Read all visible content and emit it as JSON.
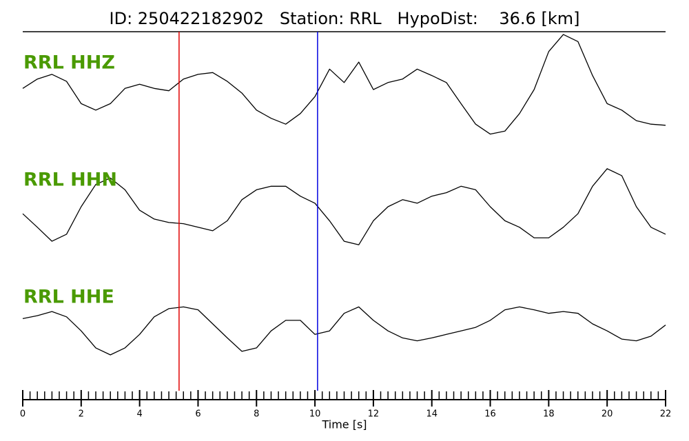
{
  "chart_data": {
    "type": "line",
    "title": "ID: 250422182902   Station: RRL   HypoDist:    36.6 [km]",
    "xlabel": "Time [s]",
    "xlim": [
      0,
      22
    ],
    "xticks": [
      0,
      2,
      4,
      6,
      8,
      10,
      12,
      14,
      16,
      18,
      20,
      22
    ],
    "minor_xticks": [
      0,
      0.25,
      0.5,
      0.75,
      1,
      1.25,
      1.5,
      1.75,
      2,
      2.25,
      2.5,
      2.75,
      3,
      3.25,
      3.5,
      3.75,
      4,
      4.25,
      4.5,
      4.75,
      5,
      5.25,
      5.5,
      5.75,
      6,
      6.25,
      6.5,
      6.75,
      7,
      7.25,
      7.5,
      7.75,
      8,
      8.25,
      8.5,
      8.75,
      9,
      9.25,
      9.5,
      9.75,
      10,
      10.25,
      10.5,
      10.75,
      11,
      11.25,
      11.5,
      11.75,
      12,
      12.25,
      12.5,
      12.75,
      13,
      13.25,
      13.5,
      13.75,
      14,
      14.25,
      14.5,
      14.75,
      15,
      15.25,
      15.5,
      15.75,
      16,
      16.25,
      16.5,
      16.75,
      17,
      17.25,
      17.5,
      17.75,
      18,
      18.25,
      18.5,
      18.75,
      19,
      19.25,
      19.5,
      19.75,
      20,
      20.25,
      20.5,
      20.75,
      21,
      21.25,
      21.5,
      21.75,
      22
    ],
    "ylim": [
      -1,
      1
    ],
    "markers": [
      {
        "x": 5.35,
        "color": "#e00000"
      },
      {
        "x": 10.09,
        "color": "#0000e0"
      }
    ],
    "x": [
      0,
      0.5,
      1,
      1.5,
      2,
      2.5,
      3,
      3.5,
      4,
      4.5,
      5,
      5.5,
      6,
      6.5,
      7,
      7.5,
      8,
      8.5,
      9,
      9.5,
      10,
      10.5,
      11,
      11.5,
      12,
      12.5,
      13,
      13.5,
      14,
      14.5,
      15,
      15.5,
      16,
      16.5,
      17,
      17.5,
      18,
      18.5,
      19,
      19.5,
      20,
      20.5,
      21,
      21.5,
      22
    ],
    "series": [
      {
        "name": "RRL HHZ",
        "color": "#000000",
        "values": [
          0.02,
          0.18,
          0.26,
          0.14,
          -0.24,
          -0.35,
          -0.24,
          0.02,
          0.09,
          0.02,
          -0.02,
          0.18,
          0.26,
          0.29,
          0.14,
          -0.06,
          -0.35,
          -0.49,
          -0.59,
          -0.41,
          -0.12,
          0.35,
          0.12,
          0.47,
          0,
          0.12,
          0.18,
          0.35,
          0.24,
          0.12,
          -0.24,
          -0.59,
          -0.76,
          -0.71,
          -0.41,
          0,
          0.65,
          0.94,
          0.82,
          0.24,
          -0.24,
          -0.35,
          -0.53,
          -0.59,
          -0.61
        ]
      },
      {
        "name": "RRL HHN",
        "color": "#000000",
        "values": [
          -0.12,
          -0.35,
          -0.59,
          -0.47,
          0,
          0.38,
          0.49,
          0.29,
          -0.06,
          -0.21,
          -0.27,
          -0.29,
          -0.35,
          -0.41,
          -0.24,
          0.12,
          0.29,
          0.35,
          0.35,
          0.18,
          0.06,
          -0.24,
          -0.59,
          -0.65,
          -0.24,
          0,
          0.12,
          0.06,
          0.18,
          0.24,
          0.35,
          0.29,
          0,
          -0.24,
          -0.35,
          -0.53,
          -0.53,
          -0.35,
          -0.12,
          0.35,
          0.65,
          0.53,
          0,
          -0.35,
          -0.47
        ]
      },
      {
        "name": "RRL HHE",
        "color": "#000000",
        "values": [
          0.09,
          0.14,
          0.21,
          0.12,
          -0.12,
          -0.41,
          -0.53,
          -0.41,
          -0.18,
          0.12,
          0.26,
          0.29,
          0.24,
          0,
          -0.24,
          -0.47,
          -0.41,
          -0.12,
          0.06,
          0.06,
          -0.18,
          -0.12,
          0.18,
          0.29,
          0.06,
          -0.12,
          -0.24,
          -0.29,
          -0.24,
          -0.18,
          -0.12,
          -0.06,
          0.06,
          0.24,
          0.29,
          0.24,
          0.18,
          0.21,
          0.18,
          0,
          -0.12,
          -0.26,
          -0.29,
          -0.21,
          -0.02
        ]
      }
    ]
  }
}
